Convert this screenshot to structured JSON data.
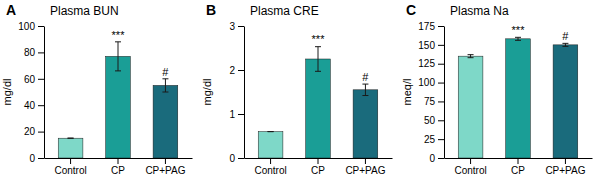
{
  "chart_data": [
    {
      "type": "bar",
      "label": "A",
      "title": "Plasma BUN",
      "ylabel": "mg/dl",
      "categories": [
        "Control",
        "CP",
        "CP+PAG"
      ],
      "values": [
        15,
        77,
        55
      ],
      "errors": [
        0,
        11,
        5
      ],
      "colors": [
        "#7ED8C8",
        "#1A9E96",
        "#1A6B7C"
      ],
      "annotations": [
        null,
        "***",
        "#"
      ],
      "ylim": [
        0,
        100
      ],
      "yticks": [
        0,
        20,
        40,
        60,
        80,
        100
      ],
      "grid": false
    },
    {
      "type": "bar",
      "label": "B",
      "title": "Plasma CRE",
      "ylabel": "mg/dl",
      "categories": [
        "Control",
        "CP",
        "CP+PAG"
      ],
      "values": [
        0.6,
        2.25,
        1.55
      ],
      "errors": [
        0,
        0.28,
        0.13
      ],
      "colors": [
        "#7ED8C8",
        "#1A9E96",
        "#1A6B7C"
      ],
      "annotations": [
        null,
        "***",
        "#"
      ],
      "ylim": [
        0,
        3
      ],
      "yticks": [
        0,
        1,
        2,
        3
      ],
      "grid": false
    },
    {
      "type": "bar",
      "label": "C",
      "title": "Plasma Na",
      "ylabel": "meq/l",
      "categories": [
        "Control",
        "CP",
        "CP+PAG"
      ],
      "values": [
        135,
        158,
        150
      ],
      "errors": [
        2,
        2,
        2
      ],
      "colors": [
        "#7ED8C8",
        "#1A9E96",
        "#1A6B7C"
      ],
      "annotations": [
        null,
        "***",
        "#"
      ],
      "ylim": [
        0,
        175
      ],
      "yticks": [
        0,
        25,
        50,
        75,
        100,
        125,
        150,
        175
      ],
      "grid": false
    }
  ]
}
